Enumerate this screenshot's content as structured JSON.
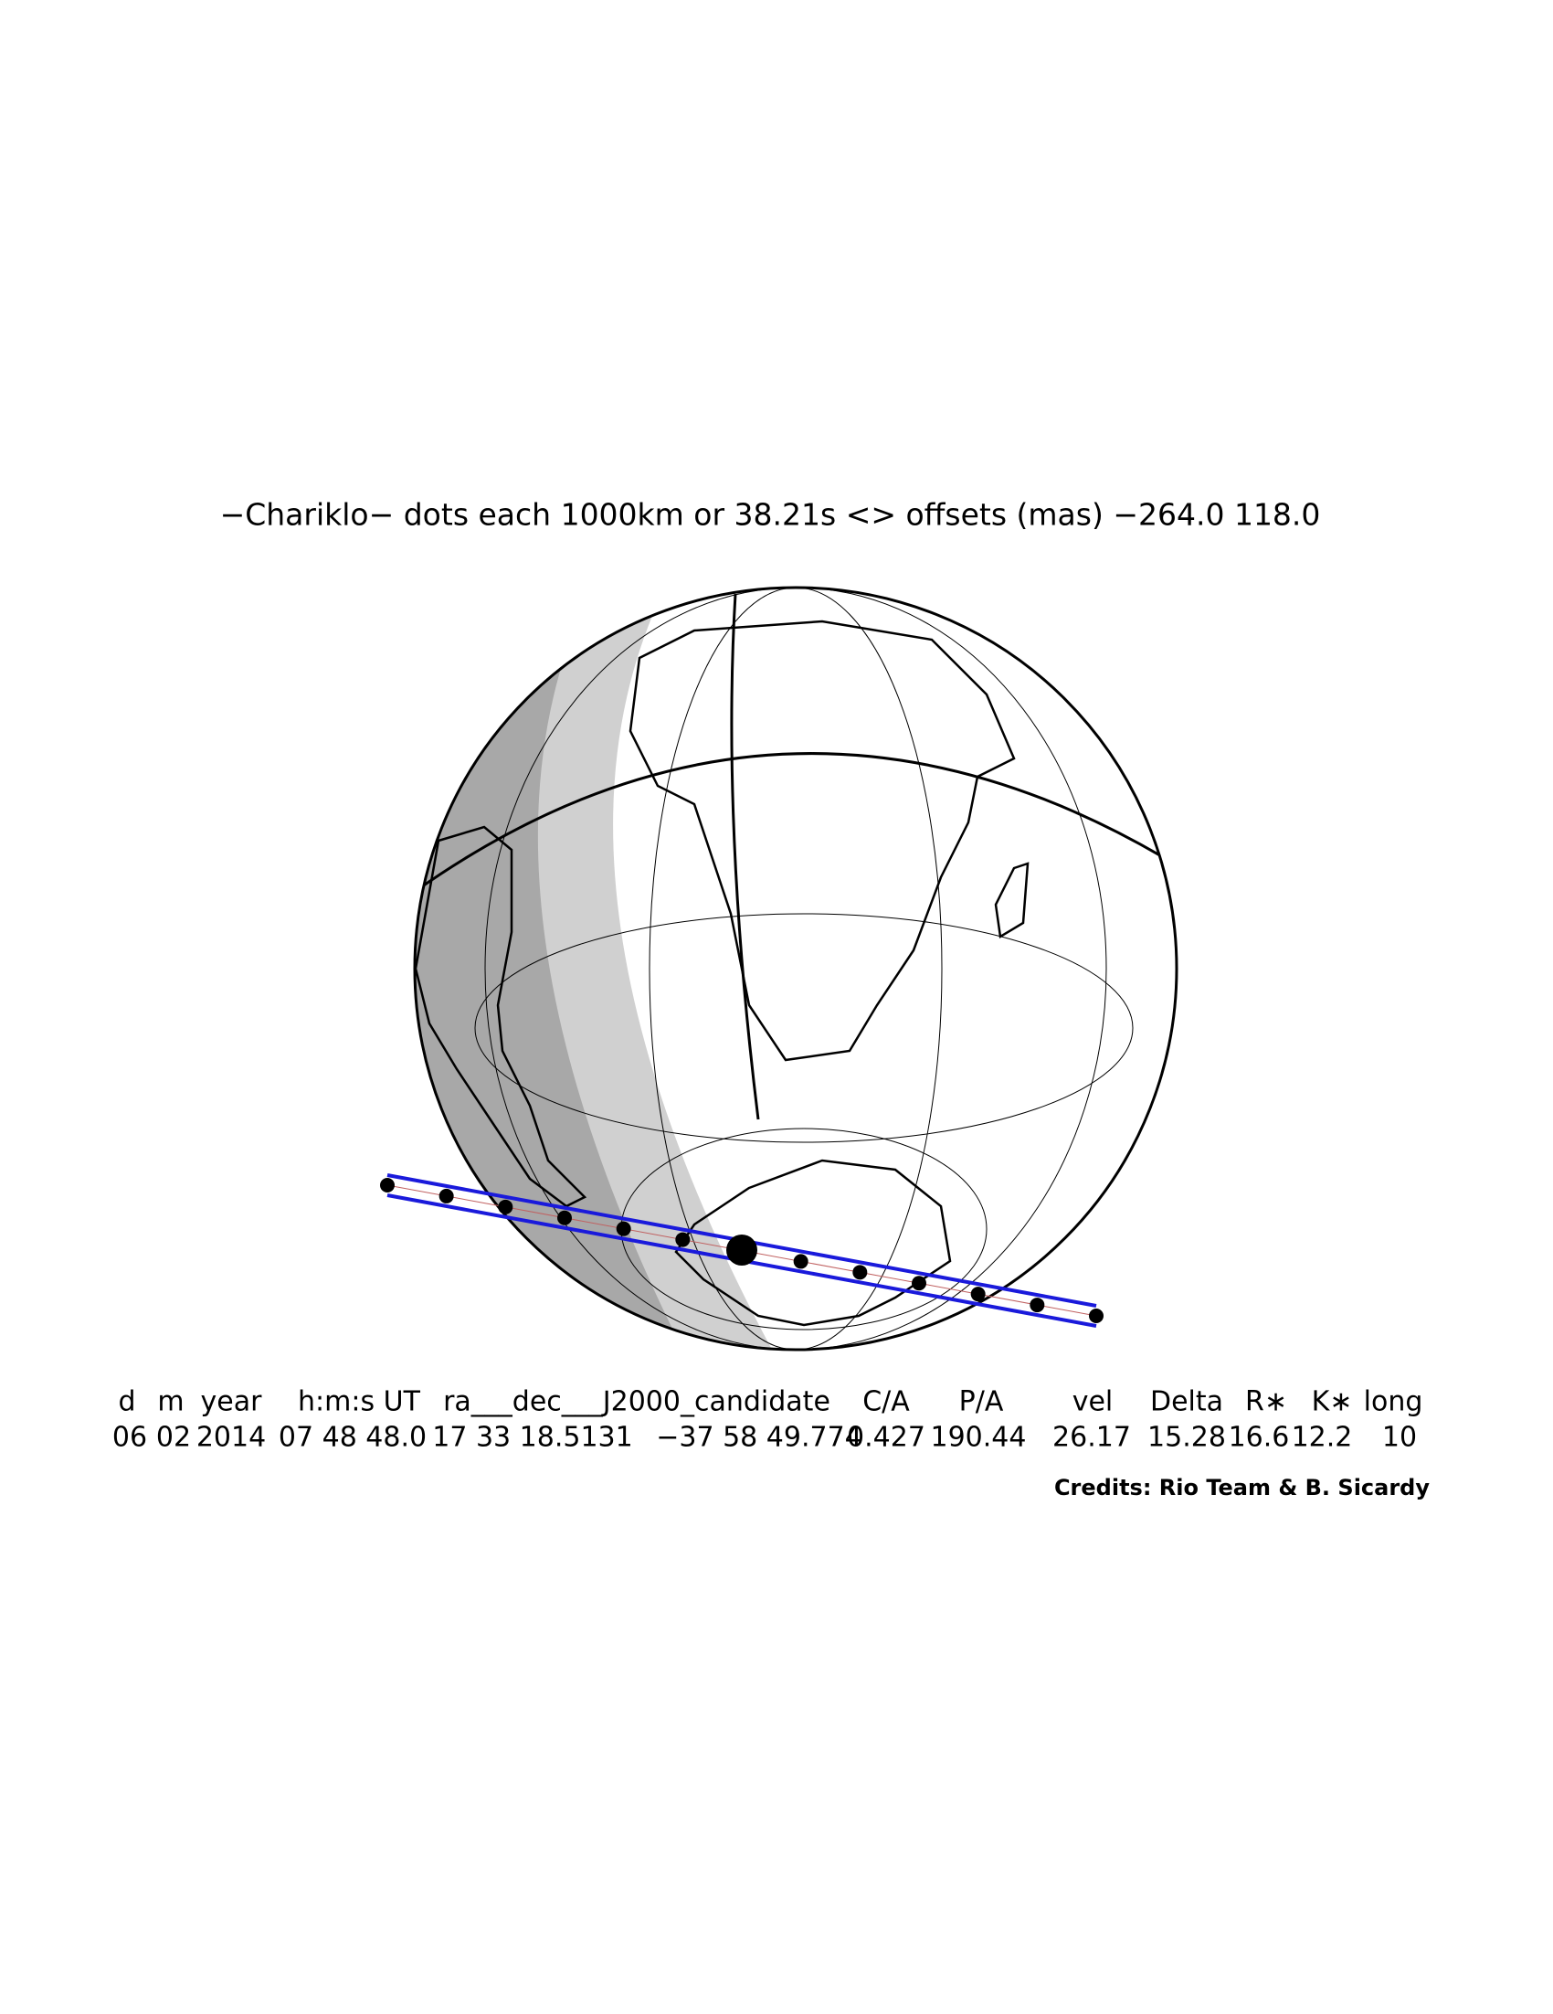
{
  "title": "−Chariklo− dots each 1000km or 38.21s <> offsets (mas) −264.0  118.0",
  "table": {
    "headers": [
      "d",
      "m",
      "year",
      "h:m:s UT",
      "ra___dec___J2000_candidate",
      "C/A",
      "P/A",
      "vel",
      "Delta",
      "R∗",
      "K∗",
      "long"
    ],
    "values": [
      "06",
      "02",
      2014,
      "07 48 48.0",
      "17 33 18.5131",
      "−37 58 49.774",
      0.427,
      190.44,
      26.17,
      15.28,
      16.6,
      12.2,
      10
    ]
  },
  "credits": "Credits: Rio Team & B. Sicardy"
}
